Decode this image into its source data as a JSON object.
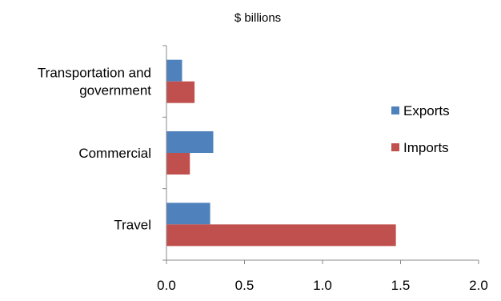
{
  "chart_data": {
    "type": "bar",
    "orientation": "horizontal",
    "unit_label": "$ billions",
    "categories": [
      [
        "Transportation and",
        "government"
      ],
      [
        "Commercial"
      ],
      [
        "Travel"
      ]
    ],
    "series": [
      {
        "name": "Exports",
        "color": "#4f81bd",
        "values": [
          0.1,
          0.3,
          0.28
        ]
      },
      {
        "name": "Imports",
        "color": "#c0504d",
        "values": [
          0.18,
          0.15,
          1.47
        ]
      }
    ],
    "xlim": [
      0.0,
      2.0
    ],
    "xticks": [
      "0.0",
      "0.5",
      "1.0",
      "1.5",
      "2.0"
    ],
    "grid": false,
    "legend_position": "right"
  }
}
